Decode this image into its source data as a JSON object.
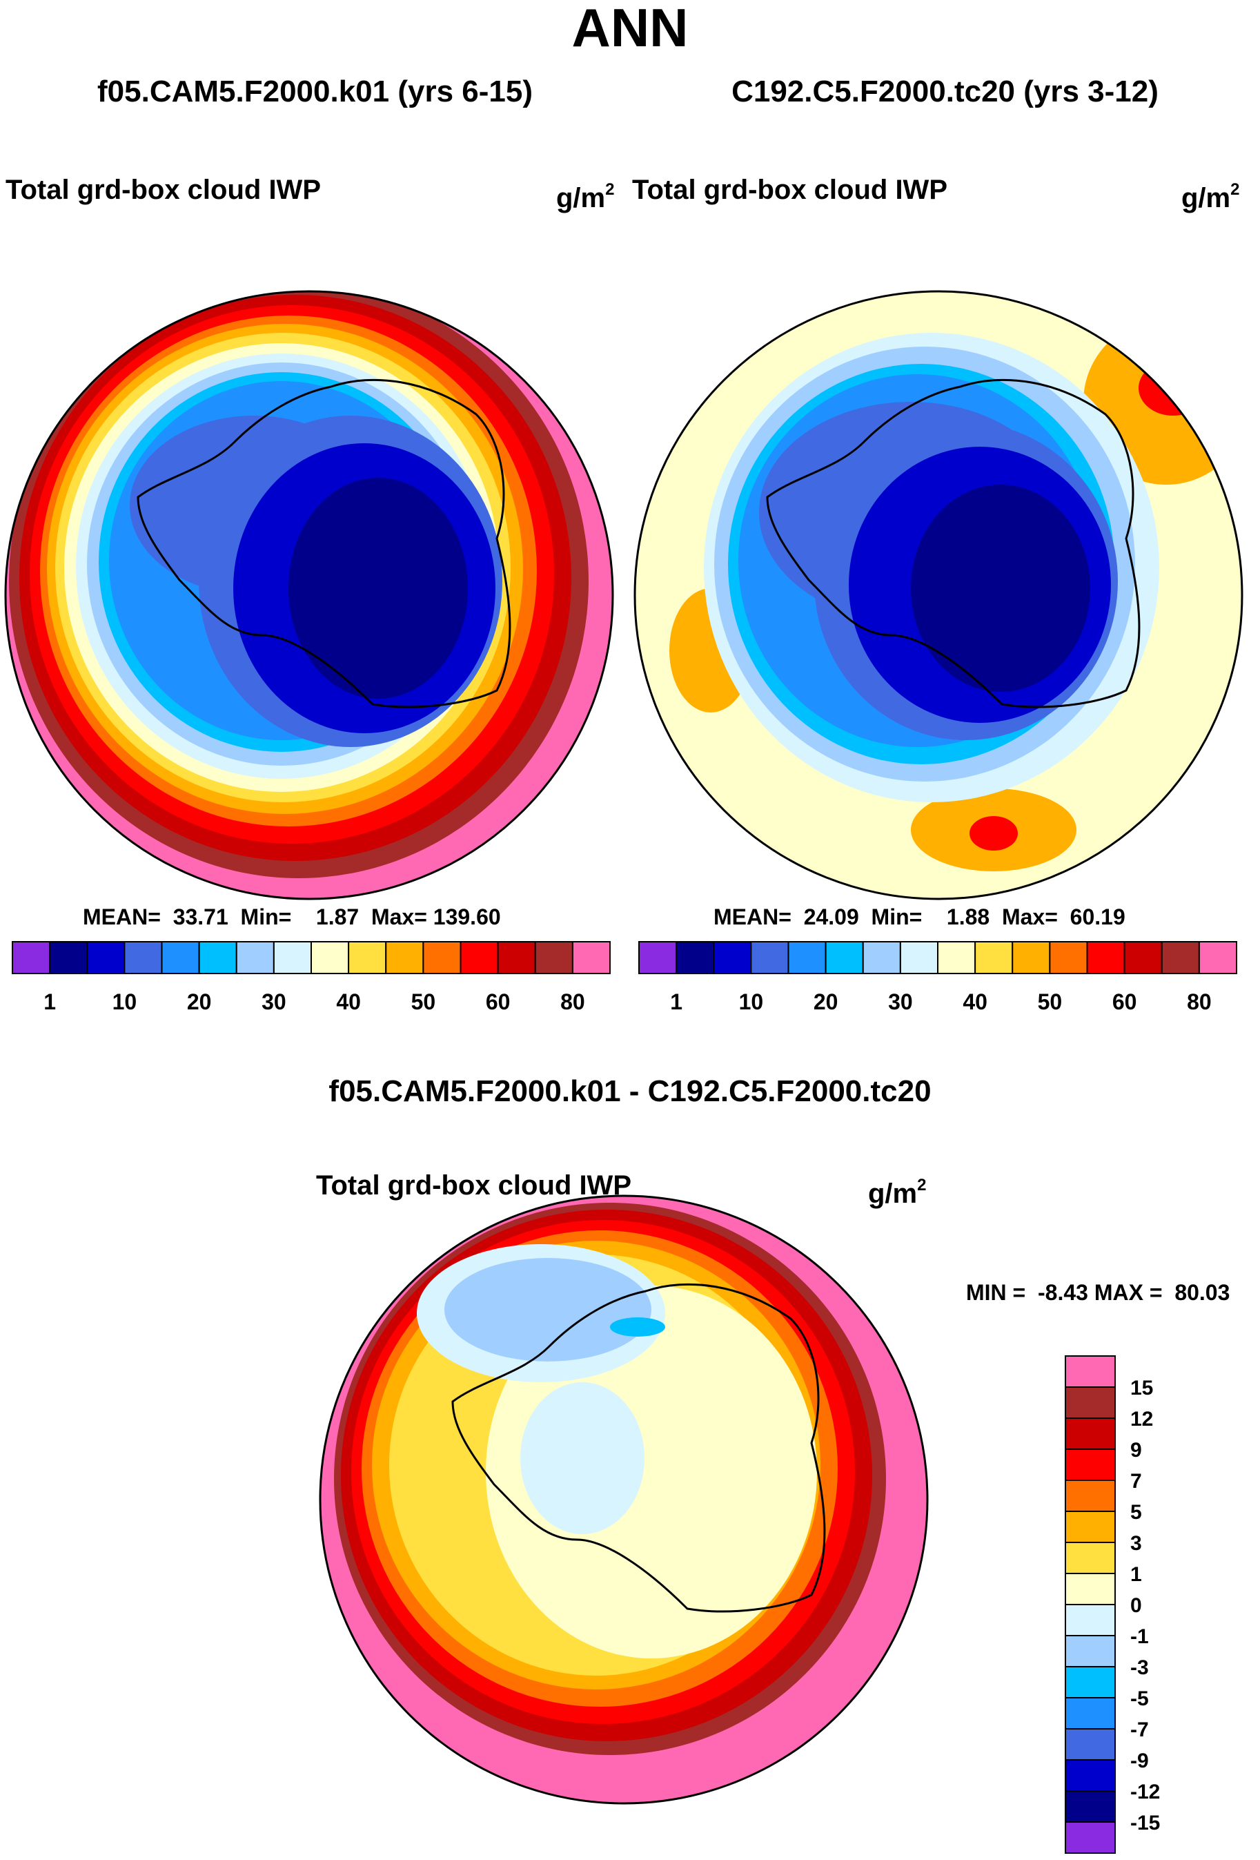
{
  "title": "ANN",
  "panels": [
    {
      "case": "f05.CAM5.F2000.k01 (yrs 6-15)",
      "variable": "Total grd-box cloud IWP",
      "units_base": "g/m",
      "units_exp": "2",
      "stats": {
        "mean_label": "MEAN=",
        "mean": "33.71",
        "min_label": "Min=",
        "min": "1.87",
        "max_label": "Max=",
        "max": "139.60"
      }
    },
    {
      "case": "C192.C5.F2000.tc20 (yrs 3-12)",
      "variable": "Total grd-box cloud IWP",
      "units_base": "g/m",
      "units_exp": "2",
      "stats": {
        "mean_label": "MEAN=",
        "mean": "24.09",
        "min_label": "Min=",
        "min": "1.88",
        "max_label": "Max=",
        "max": "60.19"
      }
    }
  ],
  "diff_panel": {
    "case": "f05.CAM5.F2000.k01 - C192.C5.F2000.tc20",
    "variable": "Total grd-box cloud IWP",
    "units_base": "g/m",
    "units_exp": "2",
    "stats": {
      "min_label": "MIN =",
      "min": "-8.43",
      "max_label": "MAX =",
      "max": "80.03"
    }
  },
  "chart_data": [
    {
      "type": "heatmap",
      "projection": "south-polar-stereographic",
      "title": "f05.CAM5.F2000.k01 (yrs 6-15)",
      "variable": "Total grd-box cloud IWP",
      "units": "g/m^2",
      "mean": 33.71,
      "min": 1.87,
      "max": 139.6,
      "colorbar": {
        "orientation": "horizontal",
        "colors": [
          "#8a2be2",
          "#00008b",
          "#0000cd",
          "#4169e1",
          "#1e90ff",
          "#00bfff",
          "#a0cfff",
          "#d8f4ff",
          "#ffffcc",
          "#ffe040",
          "#ffb000",
          "#ff7000",
          "#ff0000",
          "#cc0000",
          "#a52a2a",
          "#ff69b4"
        ],
        "tick_labels": [
          "1",
          "10",
          "20",
          "30",
          "40",
          "50",
          "60",
          "80"
        ]
      }
    },
    {
      "type": "heatmap",
      "projection": "south-polar-stereographic",
      "title": "C192.C5.F2000.tc20 (yrs 3-12)",
      "variable": "Total grd-box cloud IWP",
      "units": "g/m^2",
      "mean": 24.09,
      "min": 1.88,
      "max": 60.19,
      "colorbar": {
        "orientation": "horizontal",
        "colors": [
          "#8a2be2",
          "#00008b",
          "#0000cd",
          "#4169e1",
          "#1e90ff",
          "#00bfff",
          "#a0cfff",
          "#d8f4ff",
          "#ffffcc",
          "#ffe040",
          "#ffb000",
          "#ff7000",
          "#ff0000",
          "#cc0000",
          "#a52a2a",
          "#ff69b4"
        ],
        "tick_labels": [
          "1",
          "10",
          "20",
          "30",
          "40",
          "50",
          "60",
          "80"
        ]
      }
    },
    {
      "type": "heatmap",
      "projection": "south-polar-stereographic",
      "title": "f05.CAM5.F2000.k01 - C192.C5.F2000.tc20",
      "variable": "Total grd-box cloud IWP",
      "units": "g/m^2",
      "min": -8.43,
      "max": 80.03,
      "colorbar": {
        "orientation": "vertical",
        "colors_top_to_bottom": [
          "#ff69b4",
          "#a52a2a",
          "#cc0000",
          "#ff0000",
          "#ff7000",
          "#ffb000",
          "#ffe040",
          "#ffffcc",
          "#d8f4ff",
          "#a0cfff",
          "#00bfff",
          "#1e90ff",
          "#4169e1",
          "#0000cd",
          "#00008b",
          "#8a2be2"
        ],
        "tick_labels": [
          "15",
          "12",
          "9",
          "7",
          "5",
          "3",
          "1",
          "0",
          "-1",
          "-3",
          "-5",
          "-7",
          "-9",
          "-12",
          "-15"
        ]
      }
    }
  ]
}
